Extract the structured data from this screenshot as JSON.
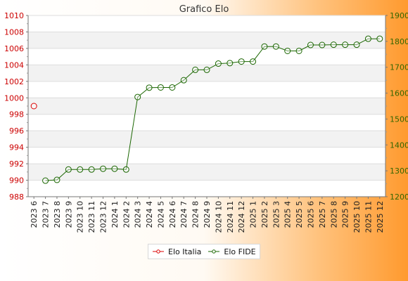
{
  "chart_data": {
    "type": "line",
    "title": "Grafico Elo",
    "x": [
      "2023 6",
      "2023 7",
      "2023 8",
      "2023 9",
      "2023 10",
      "2023 11",
      "2023 12",
      "2024 1",
      "2024 2",
      "2024 3",
      "2024 4",
      "2024 5",
      "2024 6",
      "2024 7",
      "2024 8",
      "2024 9",
      "2024 10",
      "2024 11",
      "2024 12",
      "2025 1",
      "2025 2",
      "2025 3",
      "2025 4",
      "2025 5",
      "2025 6",
      "2025 7",
      "2025 8",
      "2025 9",
      "2025 10",
      "2025 11",
      "2025 12"
    ],
    "y_left": {
      "ylim": [
        988,
        1010
      ],
      "ticks": [
        "1010",
        "1008",
        "1006",
        "1004",
        "1002",
        "1000",
        "998",
        "996",
        "994",
        "992",
        "990",
        "988"
      ],
      "color": "#cc0000"
    },
    "y_right": {
      "ylim": [
        1200,
        1900
      ],
      "ticks": [
        "1900",
        "1800",
        "1700",
        "1600",
        "1500",
        "1400",
        "1300",
        "1200"
      ],
      "color": "#336600"
    },
    "series": [
      {
        "name": "Elo Italia",
        "axis": "left",
        "color": "#dd0000",
        "values": [
          999,
          null,
          null,
          null,
          null,
          null,
          null,
          null,
          null,
          null,
          null,
          null,
          null,
          null,
          null,
          null,
          null,
          null,
          null,
          null,
          null,
          null,
          null,
          null,
          null,
          null,
          null,
          null,
          null,
          null,
          null
        ]
      },
      {
        "name": "Elo FIDE",
        "axis": "right",
        "color": "#1a6600",
        "values": [
          null,
          1262,
          1265,
          1305,
          1305,
          1305,
          1308,
          1308,
          1305,
          1585,
          1621,
          1622,
          1622,
          1650,
          1690,
          1690,
          1714,
          1716,
          1722,
          1722,
          1780,
          1780,
          1763,
          1763,
          1786,
          1786,
          1787,
          1787,
          1787,
          1810,
          1810
        ]
      }
    ],
    "grid": true,
    "legend": "bottom-center"
  }
}
